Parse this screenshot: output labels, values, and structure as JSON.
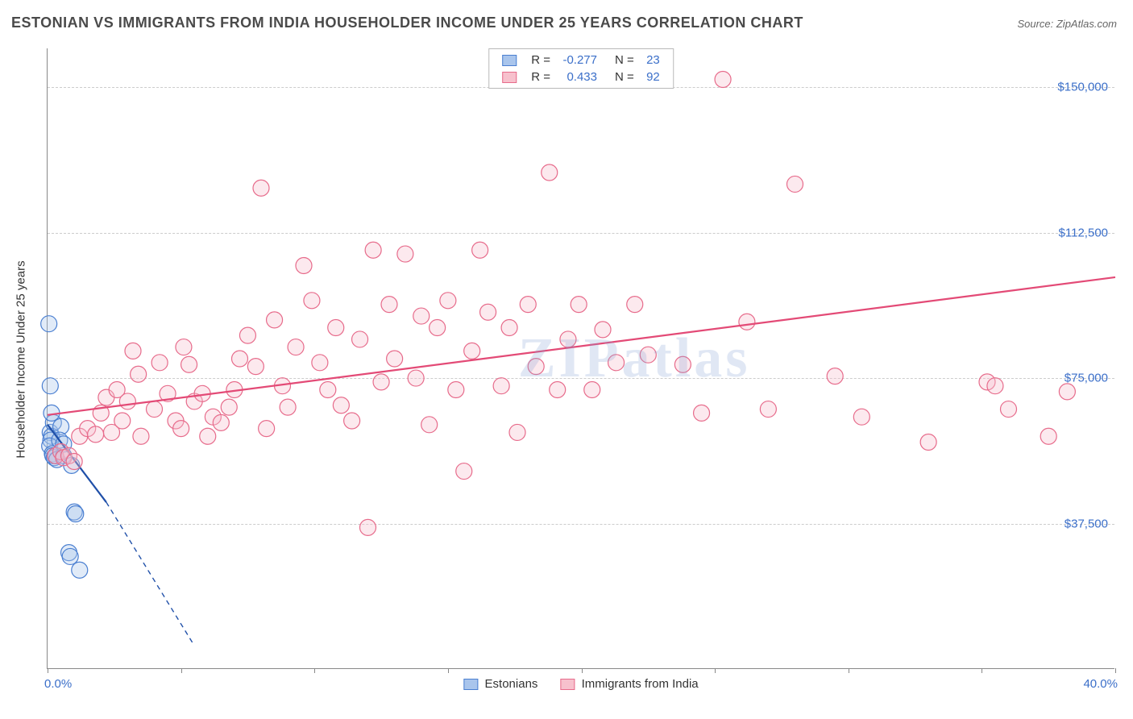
{
  "title": "ESTONIAN VS IMMIGRANTS FROM INDIA HOUSEHOLDER INCOME UNDER 25 YEARS CORRELATION CHART",
  "source": "Source: ZipAtlas.com",
  "watermark": "ZIPatlas",
  "ylabel": "Householder Income Under 25 years",
  "chart": {
    "type": "scatter",
    "background_color": "#ffffff",
    "grid_color": "#cccccc",
    "axis_color": "#888888",
    "tick_label_color": "#3b6fc9",
    "axis_label_fontsize": 15,
    "title_fontsize": 18,
    "tick_fontsize": 15,
    "xlim": [
      0,
      40
    ],
    "ylim": [
      0,
      160000
    ],
    "xticks": [
      0,
      5,
      10,
      15,
      20,
      25,
      30,
      35,
      40
    ],
    "xtick_labels_shown": {
      "0": "0.0%",
      "40": "40.0%"
    },
    "ygrid": [
      37500,
      75000,
      112500,
      150000
    ],
    "ytick_labels": {
      "37500": "$37,500",
      "75000": "$75,000",
      "112500": "$112,500",
      "150000": "$150,000"
    },
    "marker_radius": 10,
    "marker_fill_opacity": 0.35,
    "line_width": 2.2
  },
  "series": [
    {
      "key": "estonians",
      "label": "Estonians",
      "fill": "#a9c5ec",
      "stroke": "#4a7fd1",
      "line_color": "#1f4fa8",
      "R": "-0.277",
      "N": "23",
      "regression": {
        "x1": 0,
        "y1": 63000,
        "x2": 2.2,
        "y2": 43000,
        "extend_x2": 5.5,
        "extend_y2": 6000
      },
      "points": [
        [
          0.05,
          89000
        ],
        [
          0.1,
          73000
        ],
        [
          0.1,
          61000
        ],
        [
          0.15,
          60000
        ],
        [
          0.12,
          59000
        ],
        [
          0.08,
          57500
        ],
        [
          0.18,
          55500
        ],
        [
          0.2,
          55000
        ],
        [
          0.25,
          54500
        ],
        [
          0.3,
          55000
        ],
        [
          0.35,
          54000
        ],
        [
          0.6,
          55000
        ],
        [
          0.9,
          52500
        ],
        [
          0.22,
          63500
        ],
        [
          0.5,
          62500
        ],
        [
          1.0,
          40500
        ],
        [
          1.05,
          40000
        ],
        [
          0.8,
          30000
        ],
        [
          0.85,
          29000
        ],
        [
          1.2,
          25500
        ],
        [
          0.45,
          59000
        ],
        [
          0.15,
          66000
        ],
        [
          0.6,
          58000
        ]
      ]
    },
    {
      "key": "india",
      "label": "Immigrants from India",
      "fill": "#f7c1cd",
      "stroke": "#e76b8b",
      "line_color": "#e34a76",
      "R": "0.433",
      "N": "92",
      "regression": {
        "x1": 0,
        "y1": 65500,
        "x2": 40,
        "y2": 101000
      },
      "points": [
        [
          0.3,
          55000
        ],
        [
          0.5,
          56000
        ],
        [
          0.6,
          54500
        ],
        [
          0.8,
          55000
        ],
        [
          1.0,
          53500
        ],
        [
          1.2,
          60000
        ],
        [
          1.5,
          62000
        ],
        [
          1.8,
          60500
        ],
        [
          2.0,
          66000
        ],
        [
          2.2,
          70000
        ],
        [
          2.4,
          61000
        ],
        [
          2.6,
          72000
        ],
        [
          2.8,
          64000
        ],
        [
          3.0,
          69000
        ],
        [
          3.2,
          82000
        ],
        [
          3.4,
          76000
        ],
        [
          3.5,
          60000
        ],
        [
          4.0,
          67000
        ],
        [
          4.2,
          79000
        ],
        [
          4.5,
          71000
        ],
        [
          4.8,
          64000
        ],
        [
          5.0,
          62000
        ],
        [
          5.1,
          83000
        ],
        [
          5.3,
          78500
        ],
        [
          5.5,
          69000
        ],
        [
          5.8,
          71000
        ],
        [
          6.0,
          60000
        ],
        [
          6.2,
          65000
        ],
        [
          6.5,
          63500
        ],
        [
          6.8,
          67500
        ],
        [
          7.0,
          72000
        ],
        [
          7.2,
          80000
        ],
        [
          7.5,
          86000
        ],
        [
          7.8,
          78000
        ],
        [
          8.0,
          124000
        ],
        [
          8.2,
          62000
        ],
        [
          8.5,
          90000
        ],
        [
          8.8,
          73000
        ],
        [
          9.0,
          67500
        ],
        [
          9.3,
          83000
        ],
        [
          9.6,
          104000
        ],
        [
          9.9,
          95000
        ],
        [
          10.2,
          79000
        ],
        [
          10.5,
          72000
        ],
        [
          10.8,
          88000
        ],
        [
          11.0,
          68000
        ],
        [
          11.4,
          64000
        ],
        [
          11.7,
          85000
        ],
        [
          12.0,
          36500
        ],
        [
          12.2,
          108000
        ],
        [
          12.5,
          74000
        ],
        [
          12.8,
          94000
        ],
        [
          13.0,
          80000
        ],
        [
          13.4,
          107000
        ],
        [
          13.8,
          75000
        ],
        [
          14.0,
          91000
        ],
        [
          14.3,
          63000
        ],
        [
          14.6,
          88000
        ],
        [
          15.0,
          95000
        ],
        [
          15.3,
          72000
        ],
        [
          15.6,
          51000
        ],
        [
          15.9,
          82000
        ],
        [
          16.2,
          108000
        ],
        [
          16.5,
          92000
        ],
        [
          17.0,
          73000
        ],
        [
          17.3,
          88000
        ],
        [
          17.6,
          61000
        ],
        [
          18.0,
          94000
        ],
        [
          18.3,
          78000
        ],
        [
          18.8,
          128000
        ],
        [
          19.1,
          72000
        ],
        [
          19.5,
          85000
        ],
        [
          19.9,
          94000
        ],
        [
          20.4,
          72000
        ],
        [
          20.8,
          87500
        ],
        [
          21.3,
          79000
        ],
        [
          22.0,
          94000
        ],
        [
          22.5,
          81000
        ],
        [
          23.8,
          78500
        ],
        [
          24.5,
          66000
        ],
        [
          25.3,
          152000
        ],
        [
          26.2,
          89500
        ],
        [
          27.0,
          67000
        ],
        [
          28.0,
          125000
        ],
        [
          29.5,
          75500
        ],
        [
          30.5,
          65000
        ],
        [
          33.0,
          58500
        ],
        [
          35.2,
          74000
        ],
        [
          35.5,
          73000
        ],
        [
          36.0,
          67000
        ],
        [
          37.5,
          60000
        ],
        [
          38.2,
          71500
        ]
      ]
    }
  ],
  "legend_top": {
    "R_label": "R =",
    "N_label": "N ="
  },
  "legend_bottom": {
    "items": [
      "Estonians",
      "Immigrants from India"
    ]
  }
}
